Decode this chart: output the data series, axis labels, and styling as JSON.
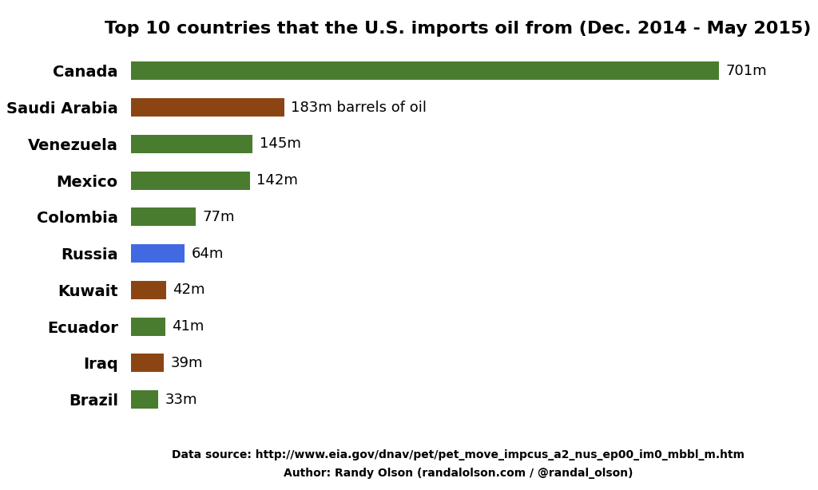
{
  "title": "Top 10 countries that the U.S. imports oil from (Dec. 2014 - May 2015)",
  "countries": [
    "Canada",
    "Saudi Arabia",
    "Venezuela",
    "Mexico",
    "Colombia",
    "Russia",
    "Kuwait",
    "Ecuador",
    "Iraq",
    "Brazil"
  ],
  "values": [
    701,
    183,
    145,
    142,
    77,
    64,
    42,
    41,
    39,
    33
  ],
  "colors": [
    "#4a7c2f",
    "#8b4513",
    "#4a7c2f",
    "#4a7c2f",
    "#4a7c2f",
    "#4169e1",
    "#8b4513",
    "#4a7c2f",
    "#8b4513",
    "#4a7c2f"
  ],
  "labels": [
    "701m",
    "183m barrels of oil",
    "145m",
    "142m",
    "77m",
    "64m",
    "42m",
    "41m",
    "39m",
    "33m"
  ],
  "footnote_line1": "Data source: http://www.eia.gov/dnav/pet/pet_move_impcus_a2_nus_ep00_im0_mbbl_m.htm",
  "footnote_line2": "Author: Randy Olson (randalolson.com / @randal_olson)",
  "title_fontsize": 16,
  "label_fontsize": 13,
  "country_fontsize": 14,
  "footnote_fontsize": 10,
  "xlim": [
    0,
    780
  ],
  "bar_height": 0.5
}
